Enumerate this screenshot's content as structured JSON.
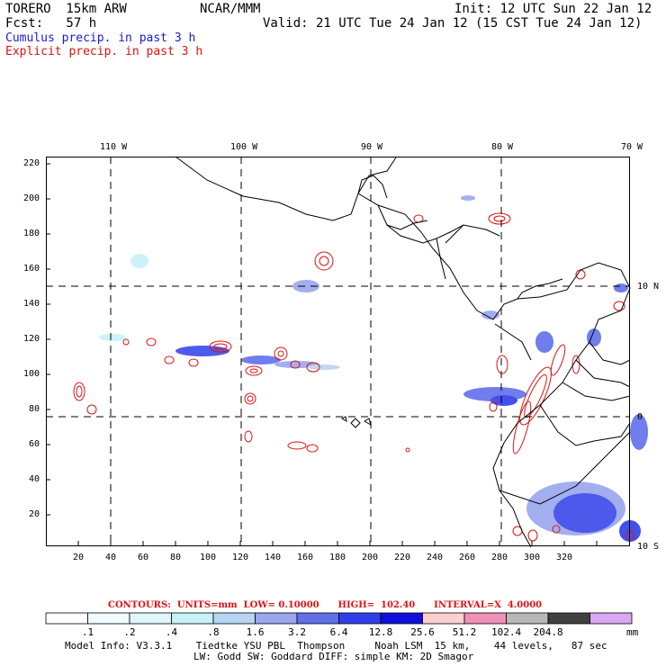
{
  "header": {
    "model": "TORERO  15km ARW",
    "org": "NCAR/MMM",
    "init": "Init: 12 UTC Sun 22 Jan 12",
    "fcst": "Fcst:   57 h",
    "valid": "Valid: 21 UTC Tue 24 Jan 12 (15 CST Tue 24 Jan 12)",
    "legend_cumulus": "Cumulus precip. in past 3 h",
    "legend_explicit": "Explicit precip. in past 3 h"
  },
  "map": {
    "lon_labels": [
      "110 W",
      "100 W",
      "90 W",
      "80 W",
      "70 W"
    ],
    "lat_labels": [
      "10 N",
      "0",
      "10 S"
    ],
    "y_ticks": [
      "220",
      "200",
      "180",
      "160",
      "140",
      "120",
      "100",
      "80",
      "60",
      "40",
      "20"
    ],
    "x_ticks": [
      "20",
      "40",
      "60",
      "80",
      "100",
      "120",
      "140",
      "160",
      "180",
      "200",
      "220",
      "240",
      "260",
      "280",
      "300",
      "320"
    ]
  },
  "contours": "CONTOURS:  UNITS=mm  LOW= 0.10000      HIGH=  102.40      INTERVAL=X  4.0000",
  "colorbar": {
    "labels": [
      ".1",
      ".2",
      ".4",
      ".8",
      "1.6",
      "3.2",
      "6.4",
      "12.8",
      "25.6",
      "51.2",
      "102.4",
      "204.8"
    ],
    "unit": "mm",
    "colors": [
      "#ffffff",
      "#f0fbff",
      "#e0f6fb",
      "#c8f0f8",
      "#b7d4f5",
      "#9aa6f0",
      "#6170ea",
      "#2f3fe8",
      "#1010d8",
      "#fbd0d0",
      "#f090b8",
      "#b8b8b8",
      "#404040",
      "#d8a8f0"
    ]
  },
  "footer": {
    "line1": "Model Info: V3.3.1    Tiedtke YSU PBL  Thompson     Noah LSM  15 km,    44 levels,   87 sec",
    "line2": "LW: Godd SW: Goddard DIFF: simple KM: 2D Smagor"
  }
}
